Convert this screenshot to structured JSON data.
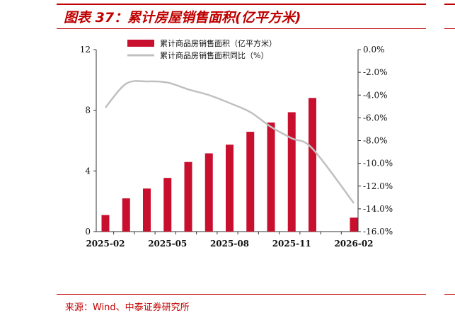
{
  "title": "图表 37：累计房屋销售面积(亿平方米)",
  "source": "来源：Wind、中泰证券研究所",
  "colors": {
    "accent": "#c00000",
    "bar": "#c8102e",
    "line": "#c0c0c0"
  },
  "chart_data": {
    "type": "bar",
    "x": [
      "2025-02",
      "2025-03",
      "2025-04",
      "2025-05",
      "2025-06",
      "2025-07",
      "2025-08",
      "2025-09",
      "2025-10",
      "2025-11",
      "2025-12",
      "2026-01",
      "2026-02"
    ],
    "x_tick_labels": [
      "2025-02",
      "2025-05",
      "2025-08",
      "2025-11",
      "2026-02"
    ],
    "series": [
      {
        "name": "累计商品房销售面积（亿平方米）",
        "type": "bar",
        "axis": "left",
        "values": [
          1.09,
          2.19,
          2.84,
          3.54,
          4.59,
          5.16,
          5.73,
          6.58,
          7.19,
          7.87,
          8.81,
          null,
          0.92
        ]
      },
      {
        "name": "累计商品房销售面积同比（%）",
        "type": "line",
        "axis": "right",
        "values": [
          -5.1,
          -3.0,
          -2.8,
          -2.9,
          -3.5,
          -4.0,
          -4.7,
          -5.5,
          -6.8,
          -7.8,
          -8.7,
          null,
          -13.5
        ]
      }
    ],
    "left_axis": {
      "ylim": [
        0,
        12
      ],
      "ticks": [
        "0",
        "4",
        "8",
        "12"
      ]
    },
    "right_axis": {
      "ylim": [
        -16,
        0
      ],
      "ticks": [
        "0.0%",
        "-2.0%",
        "-4.0%",
        "-6.0%",
        "-8.0%",
        "-10.0%",
        "-12.0%",
        "-14.0%",
        "-16.0%"
      ]
    },
    "legend_position": "top-center",
    "grid": false
  }
}
